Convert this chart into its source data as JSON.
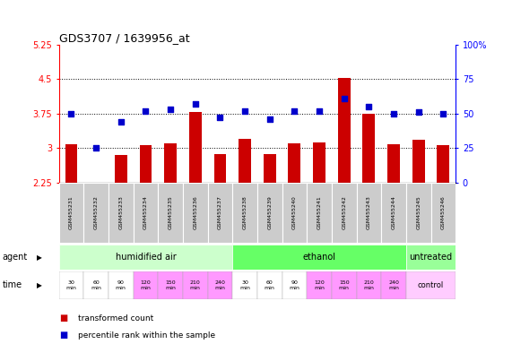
{
  "title": "GDS3707 / 1639956_at",
  "samples": [
    "GSM455231",
    "GSM455232",
    "GSM455233",
    "GSM455234",
    "GSM455235",
    "GSM455236",
    "GSM455237",
    "GSM455238",
    "GSM455239",
    "GSM455240",
    "GSM455241",
    "GSM455242",
    "GSM455243",
    "GSM455244",
    "GSM455245",
    "GSM455246"
  ],
  "transformed_count": [
    3.08,
    2.25,
    2.85,
    3.07,
    3.1,
    3.78,
    2.87,
    3.2,
    2.87,
    3.1,
    3.12,
    4.53,
    3.74,
    3.08,
    3.18,
    3.07
  ],
  "percentile_rank": [
    50,
    25,
    44,
    52,
    53,
    57,
    47,
    52,
    46,
    52,
    52,
    61,
    55,
    50,
    51,
    50
  ],
  "bar_color": "#cc0000",
  "dot_color": "#0000cc",
  "ylim_left": [
    2.25,
    5.25
  ],
  "ylim_right": [
    0,
    100
  ],
  "yticks_left": [
    2.25,
    3.0,
    3.75,
    4.5,
    5.25
  ],
  "ytick_labels_left": [
    "2.25",
    "3",
    "3.75",
    "4.5",
    "5.25"
  ],
  "yticks_right": [
    0,
    25,
    50,
    75,
    100
  ],
  "ytick_labels_right": [
    "0",
    "25",
    "50",
    "75",
    "100%"
  ],
  "hlines": [
    3.0,
    3.75,
    4.5
  ],
  "agent_groups": [
    {
      "label": "humidified air",
      "start": 0,
      "end": 7,
      "color": "#ccffcc"
    },
    {
      "label": "ethanol",
      "start": 7,
      "end": 14,
      "color": "#66ff66"
    },
    {
      "label": "untreated",
      "start": 14,
      "end": 16,
      "color": "#99ff99"
    }
  ],
  "time_labels": [
    "30\nmin",
    "60\nmin",
    "90\nmin",
    "120\nmin",
    "150\nmin",
    "210\nmin",
    "240\nmin",
    "30\nmin",
    "60\nmin",
    "90\nmin",
    "120\nmin",
    "150\nmin",
    "210\nmin",
    "240\nmin"
  ],
  "time_colors": [
    "#ffffff",
    "#ffffff",
    "#ffffff",
    "#ff99ff",
    "#ff99ff",
    "#ff99ff",
    "#ff99ff",
    "#ffffff",
    "#ffffff",
    "#ffffff",
    "#ff99ff",
    "#ff99ff",
    "#ff99ff",
    "#ff99ff"
  ],
  "control_label": "control",
  "control_color": "#ffccff",
  "legend_items": [
    {
      "color": "#cc0000",
      "label": "transformed count"
    },
    {
      "color": "#0000cc",
      "label": "percentile rank within the sample"
    }
  ],
  "bar_bottom": 2.25,
  "bar_width": 0.5,
  "gsm_bg": "#cccccc"
}
